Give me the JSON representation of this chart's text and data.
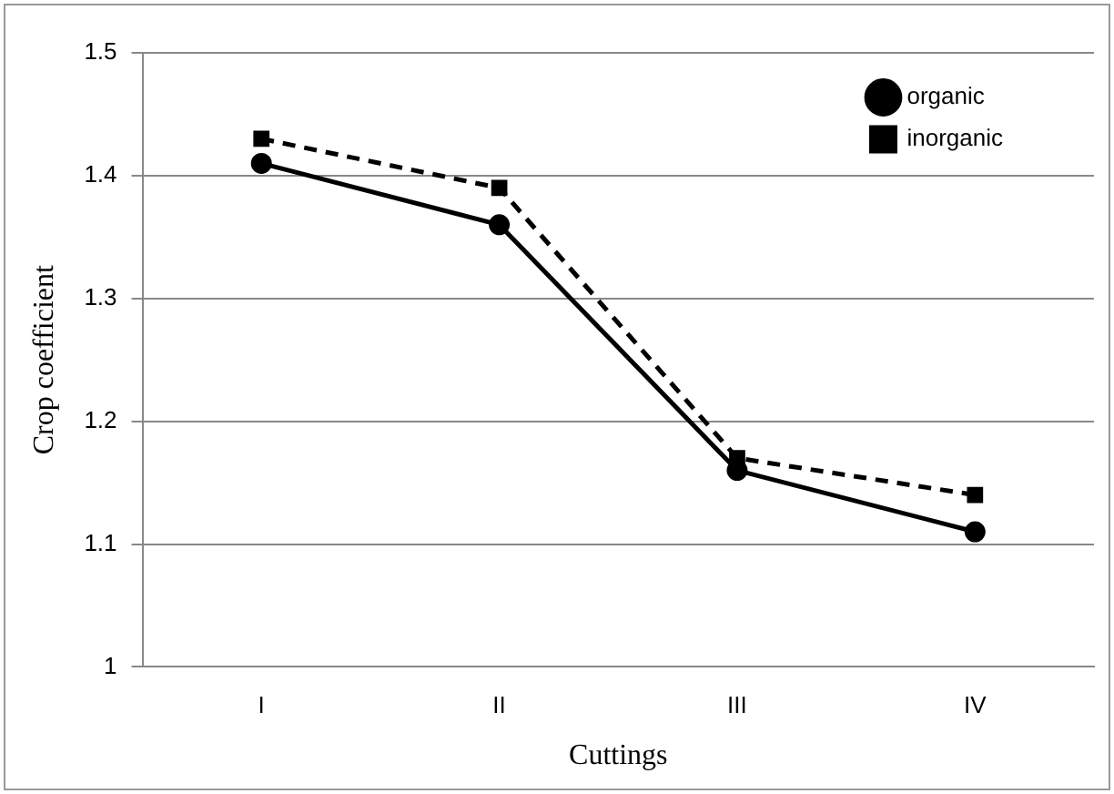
{
  "chart_data": {
    "type": "line",
    "xlabel": "Cuttings",
    "ylabel": "Crop coefficient",
    "categories": [
      "I",
      "II",
      "III",
      "IV"
    ],
    "series": [
      {
        "name": "organic",
        "color": "#000000",
        "values": [
          1.41,
          1.36,
          1.16,
          1.11
        ],
        "marker": "circle",
        "line_style": "solid"
      },
      {
        "name": "inorganic",
        "color": "#000000",
        "values": [
          1.43,
          1.39,
          1.17,
          1.14
        ],
        "marker": "square",
        "line_style": "dashed"
      }
    ],
    "ylim": [
      1,
      1.5
    ],
    "yticks": [
      1,
      1.1,
      1.2,
      1.3,
      1.4,
      1.5
    ],
    "grid": "y",
    "legend": "top right"
  }
}
